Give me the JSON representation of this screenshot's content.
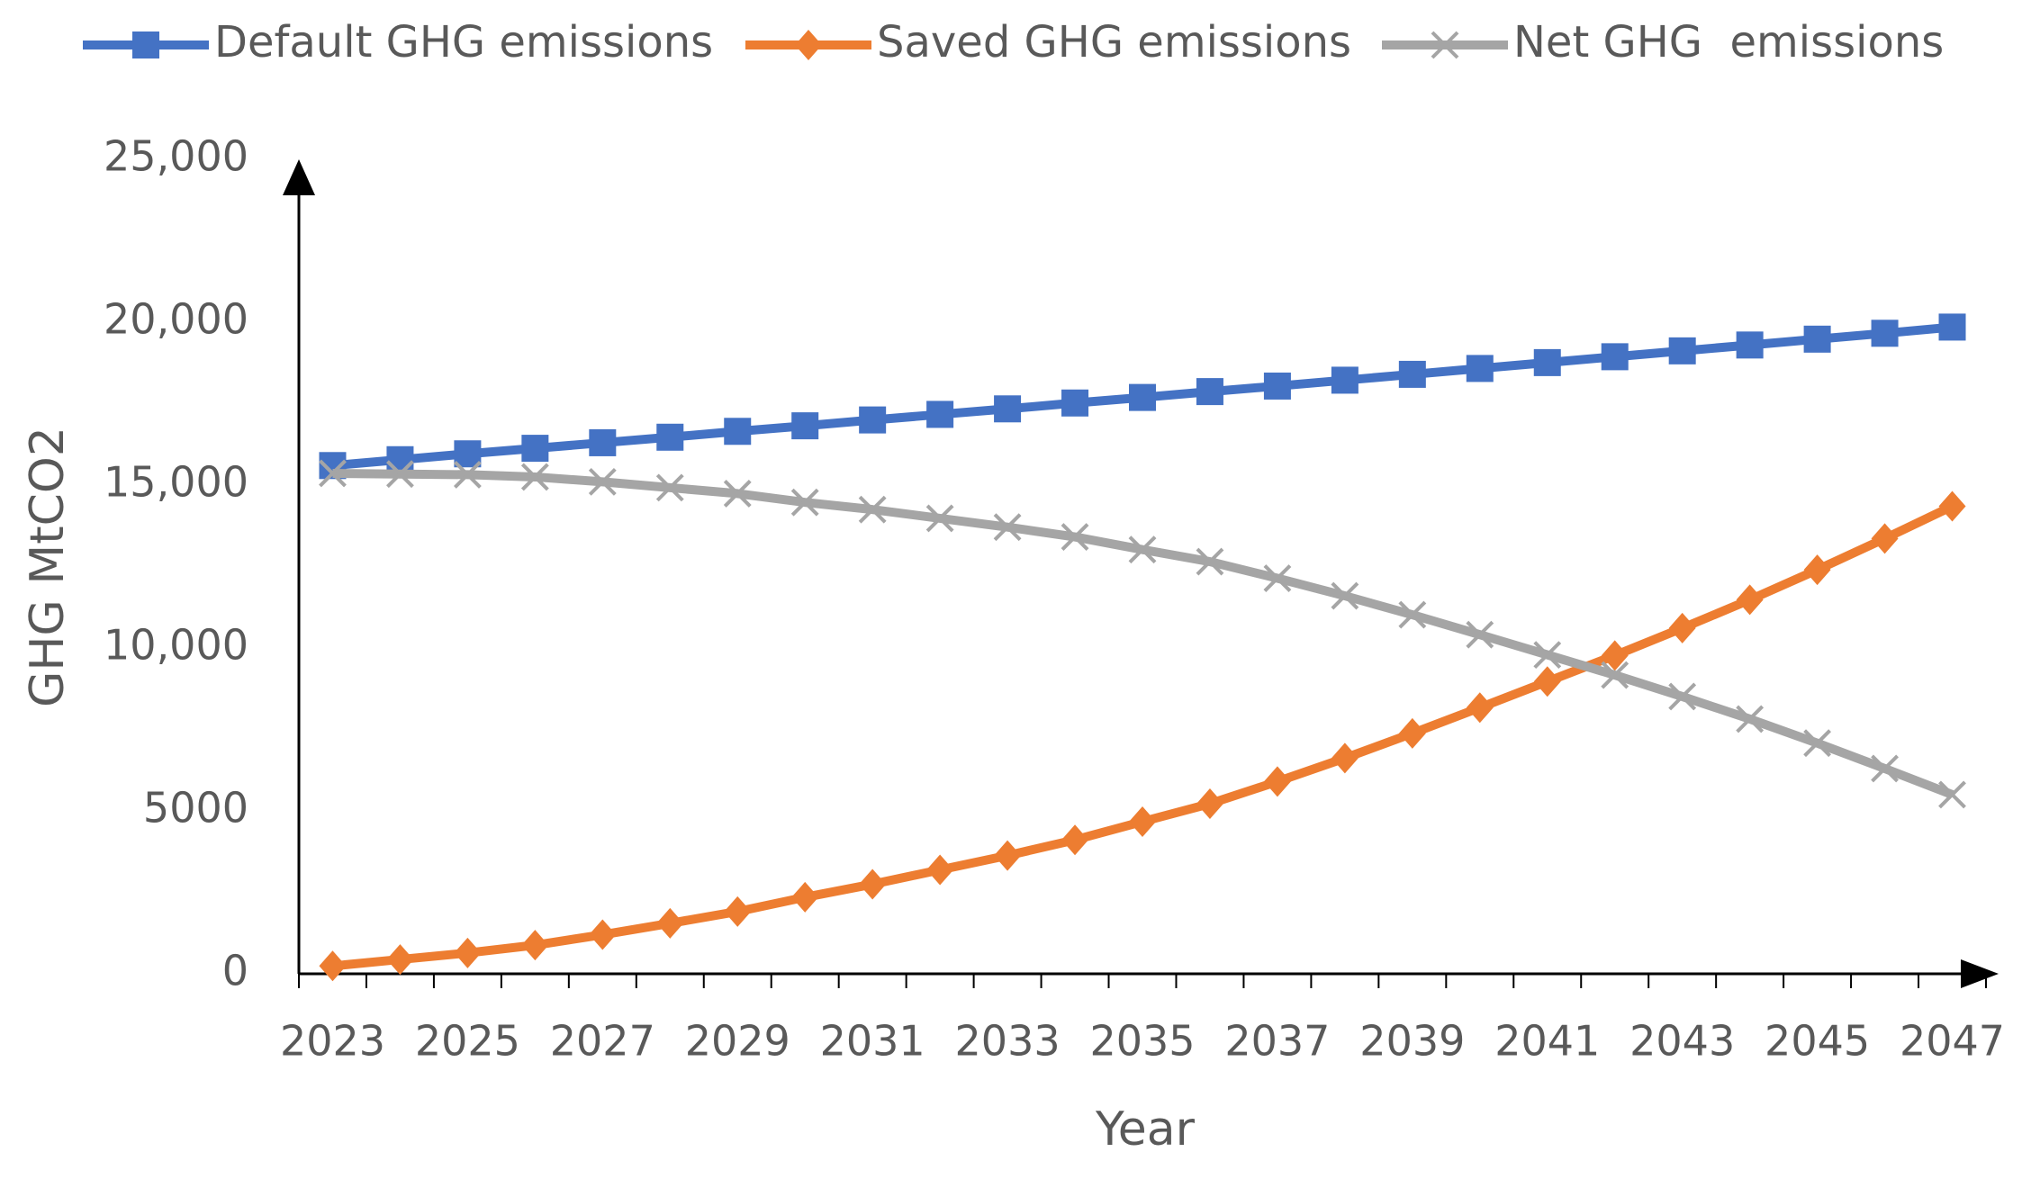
{
  "chart_data": {
    "type": "line",
    "x_label": "Year",
    "y_label": "GHG MtCO2",
    "x": [
      2023,
      2024,
      2025,
      2026,
      2027,
      2028,
      2029,
      2030,
      2031,
      2032,
      2033,
      2034,
      2035,
      2036,
      2037,
      2038,
      2039,
      2040,
      2041,
      2042,
      2043,
      2044,
      2045,
      2046,
      2047
    ],
    "xlim": [
      2022.5,
      2047.5
    ],
    "xticks": [
      2023,
      2025,
      2027,
      2029,
      2031,
      2033,
      2035,
      2037,
      2039,
      2041,
      2043,
      2045,
      2047
    ],
    "ylim": [
      0,
      25000
    ],
    "yticks": [
      0,
      5000,
      {
        "value": 10000,
        "label": "10,000"
      },
      {
        "value": 15000,
        "label": "15,000"
      },
      {
        "value": 20000,
        "label": "20,000"
      },
      {
        "value": 25000,
        "label": "25,000"
      }
    ],
    "grid": false,
    "legend": "top",
    "series": [
      {
        "name": "Default GHG emissions",
        "color": "#4472c4",
        "marker": "square",
        "values": [
          15600,
          15780,
          15960,
          16130,
          16300,
          16470,
          16650,
          16820,
          17000,
          17170,
          17340,
          17520,
          17690,
          17870,
          18040,
          18220,
          18400,
          18580,
          18760,
          18940,
          19120,
          19300,
          19480,
          19660,
          19850
        ]
      },
      {
        "name": "Saved GHG emissions",
        "color": "#ed7d31",
        "marker": "diamond",
        "values": [
          240,
          440,
          640,
          880,
          1200,
          1550,
          1910,
          2350,
          2750,
          3190,
          3630,
          4110,
          4670,
          5220,
          5900,
          6620,
          7380,
          8170,
          8970,
          9770,
          10610,
          11480,
          12400,
          13360,
          14350
        ]
      },
      {
        "name": "Net GHG  emissions",
        "color": "#a5a5a5",
        "marker": "x",
        "values": [
          15360,
          15340,
          15320,
          15250,
          15100,
          14920,
          14740,
          14470,
          14250,
          13980,
          13710,
          13410,
          13020,
          12650,
          12140,
          11600,
          11020,
          10410,
          9790,
          9170,
          8510,
          7820,
          7080,
          6300,
          5500
        ]
      }
    ]
  }
}
